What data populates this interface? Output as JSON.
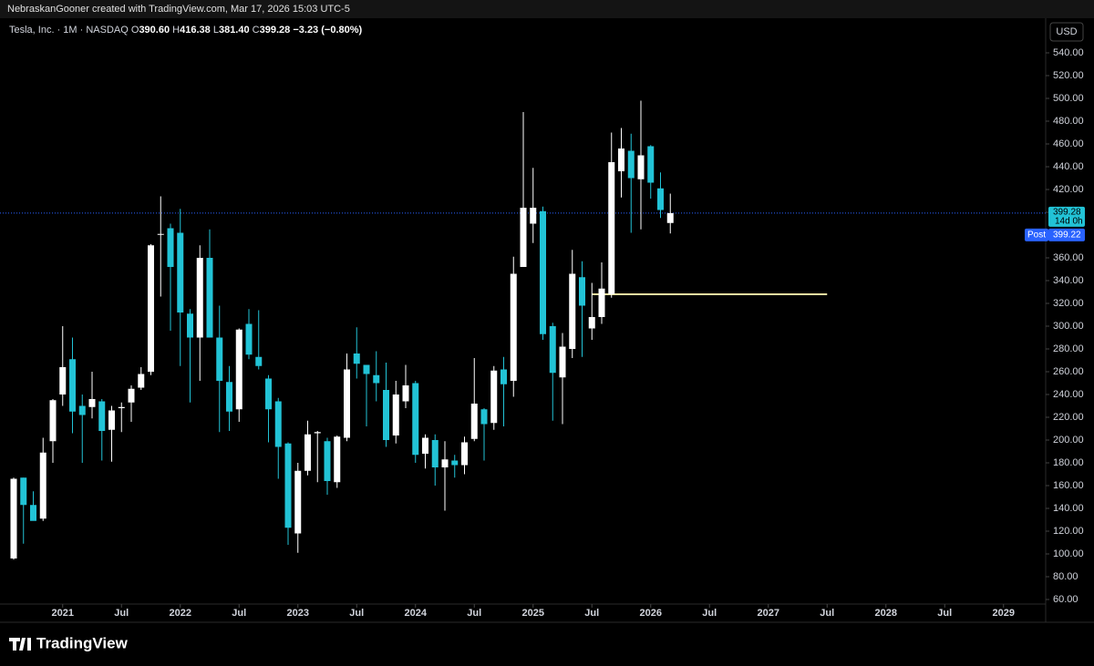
{
  "header": "NebraskanGooner created with TradingView.com, Mar 17, 2026 15:03 UTC-5",
  "footer": "TradingView",
  "chart_data": {
    "type": "candlestick",
    "legend": {
      "symbol": "Tesla, Inc. · 1M · NASDAQ",
      "ohlc": [
        {
          "key": "O",
          "text": "390.60"
        },
        {
          "key": "H",
          "text": "416.38"
        },
        {
          "key": "L",
          "text": "381.40"
        },
        {
          "key": "C",
          "text": "399.28"
        }
      ],
      "change": "−3.23 (−0.80%)"
    },
    "currency": "USD",
    "up_color": "#ffffff",
    "down_color": "#22c3d6",
    "x": [
      "2020-08",
      "2020-09",
      "2020-10",
      "2020-11",
      "2020-12",
      "2021-01",
      "2021-02",
      "2021-03",
      "2021-04",
      "2021-05",
      "2021-06",
      "2021-07",
      "2021-08",
      "2021-09",
      "2021-10",
      "2021-11",
      "2021-12",
      "2022-01",
      "2022-02",
      "2022-03",
      "2022-04",
      "2022-05",
      "2022-06",
      "2022-07",
      "2022-08",
      "2022-09",
      "2022-10",
      "2022-11",
      "2022-12",
      "2023-01",
      "2023-02",
      "2023-03",
      "2023-04",
      "2023-05",
      "2023-06",
      "2023-07",
      "2023-08",
      "2023-09",
      "2023-10",
      "2023-11",
      "2023-12",
      "2024-01",
      "2024-02",
      "2024-03",
      "2024-04",
      "2024-05",
      "2024-06",
      "2024-07",
      "2024-08",
      "2024-09",
      "2024-10",
      "2024-11",
      "2024-12",
      "2025-01",
      "2025-02",
      "2025-03",
      "2025-04",
      "2025-05",
      "2025-06",
      "2025-07",
      "2025-08",
      "2025-09",
      "2025-10",
      "2025-11",
      "2025-12",
      "2026-01",
      "2026-02",
      "2026-03"
    ],
    "open": [
      96,
      167,
      143,
      131,
      199,
      240,
      271,
      230,
      229,
      234,
      209,
      228,
      233,
      246,
      260,
      381,
      386,
      382,
      311,
      290,
      360,
      290,
      251,
      227,
      302,
      273,
      254,
      234,
      197,
      118,
      173,
      206,
      199,
      163,
      202,
      276,
      266,
      257,
      244,
      204,
      234,
      250,
      188,
      200,
      176,
      182,
      178,
      201,
      227,
      215,
      262,
      252,
      352,
      390,
      401,
      300,
      255,
      280,
      343,
      298,
      308,
      328,
      436,
      454,
      429,
      458,
      421,
      390.6
    ],
    "high": [
      167,
      167,
      155,
      202,
      236,
      300,
      290,
      240,
      260,
      236,
      230,
      233,
      248,
      264,
      372,
      414,
      390,
      403,
      315,
      371,
      385,
      318,
      265,
      298,
      315,
      314,
      257,
      237,
      198,
      180,
      217,
      208,
      202,
      204,
      276,
      299,
      266,
      278,
      268,
      252,
      266,
      252,
      205,
      205,
      199,
      187,
      203,
      272,
      228,
      265,
      273,
      361,
      488,
      439,
      405,
      303,
      294,
      367,
      357,
      338,
      356,
      470,
      474,
      469,
      498,
      459,
      435,
      416.38
    ],
    "low": [
      95,
      109,
      133,
      129,
      180,
      230,
      206,
      180,
      219,
      182,
      181,
      207,
      216,
      244,
      257,
      326,
      296,
      265,
      233,
      252,
      290,
      207,
      208,
      216,
      271,
      262,
      198,
      166,
      108,
      101,
      169,
      163,
      152,
      158,
      199,
      254,
      212,
      234,
      194,
      197,
      228,
      180,
      175,
      160,
      138,
      167,
      170,
      199,
      182,
      209,
      212,
      238,
      352,
      373,
      288,
      217,
      214,
      272,
      273,
      288,
      302,
      325,
      413,
      382,
      385,
      412,
      395,
      381.4
    ],
    "close": [
      166,
      143,
      129,
      189,
      235,
      264,
      225,
      222,
      236,
      208,
      226,
      229,
      245,
      258,
      371,
      381,
      352,
      312,
      290,
      360,
      290,
      252,
      225,
      297,
      275,
      265,
      227,
      194,
      123,
      173,
      205,
      207,
      164,
      203,
      262,
      267,
      258,
      250,
      200,
      240,
      248,
      187,
      202,
      176,
      183,
      178,
      198,
      232,
      214,
      261,
      249,
      346,
      404,
      404,
      293,
      259,
      282,
      346,
      318,
      308,
      333,
      444,
      456,
      430,
      450,
      426,
      402,
      399.28
    ],
    "ylim": [
      56,
      568.8
    ],
    "yticks": [
      {
        "value": 60,
        "label": "60.00"
      },
      {
        "value": 80,
        "label": "80.00"
      },
      {
        "value": 100,
        "label": "100.00"
      },
      {
        "value": 120,
        "label": "120.00"
      },
      {
        "value": 140,
        "label": "140.00"
      },
      {
        "value": 160,
        "label": "160.00"
      },
      {
        "value": 180,
        "label": "180.00"
      },
      {
        "value": 200,
        "label": "200.00"
      },
      {
        "value": 220,
        "label": "220.00"
      },
      {
        "value": 240,
        "label": "240.00"
      },
      {
        "value": 260,
        "label": "260.00"
      },
      {
        "value": 280,
        "label": "280.00"
      },
      {
        "value": 300,
        "label": "300.00"
      },
      {
        "value": 320,
        "label": "320.00"
      },
      {
        "value": 340,
        "label": "340.00"
      },
      {
        "value": 360,
        "label": "360.00"
      },
      {
        "value": 380,
        "label": "380.00"
      },
      {
        "value": 400,
        "label": "400.00"
      },
      {
        "value": 420,
        "label": "420.00"
      },
      {
        "value": 440,
        "label": "440.00"
      },
      {
        "value": 460,
        "label": "460.00"
      },
      {
        "value": 480,
        "label": "480.00"
      },
      {
        "value": 500,
        "label": "500.00"
      },
      {
        "value": 520,
        "label": "520.00"
      },
      {
        "value": 540,
        "label": "540.00"
      }
    ],
    "xticks": [
      {
        "value": "2021-01",
        "label": "2021"
      },
      {
        "value": "2021-07",
        "label": "Jul"
      },
      {
        "value": "2022-01",
        "label": "2022"
      },
      {
        "value": "2022-07",
        "label": "Jul"
      },
      {
        "value": "2023-01",
        "label": "2023"
      },
      {
        "value": "2023-07",
        "label": "Jul"
      },
      {
        "value": "2024-01",
        "label": "2024"
      },
      {
        "value": "2024-07",
        "label": "Jul"
      },
      {
        "value": "2025-01",
        "label": "2025"
      },
      {
        "value": "2025-07",
        "label": "Jul"
      },
      {
        "value": "2026-01",
        "label": "2026"
      },
      {
        "value": "2026-07",
        "label": "Jul"
      },
      {
        "value": "2027-01",
        "label": "2027"
      },
      {
        "value": "2027-07",
        "label": "Jul"
      },
      {
        "value": "2028-01",
        "label": "2028"
      },
      {
        "value": "2028-07",
        "label": "Jul"
      },
      {
        "value": "2029-01",
        "label": "2029"
      }
    ],
    "last_price": {
      "value": 399.28,
      "label": "399.28",
      "countdown": "14d 0h",
      "color": "#22c3d6"
    },
    "post_price": {
      "name": "Post",
      "value": 399.22,
      "label": "399.22",
      "color": "#2962ff"
    },
    "level": {
      "value": 328,
      "from": "2025-07",
      "to": "2027-07",
      "color": "#f3e3a1"
    }
  }
}
